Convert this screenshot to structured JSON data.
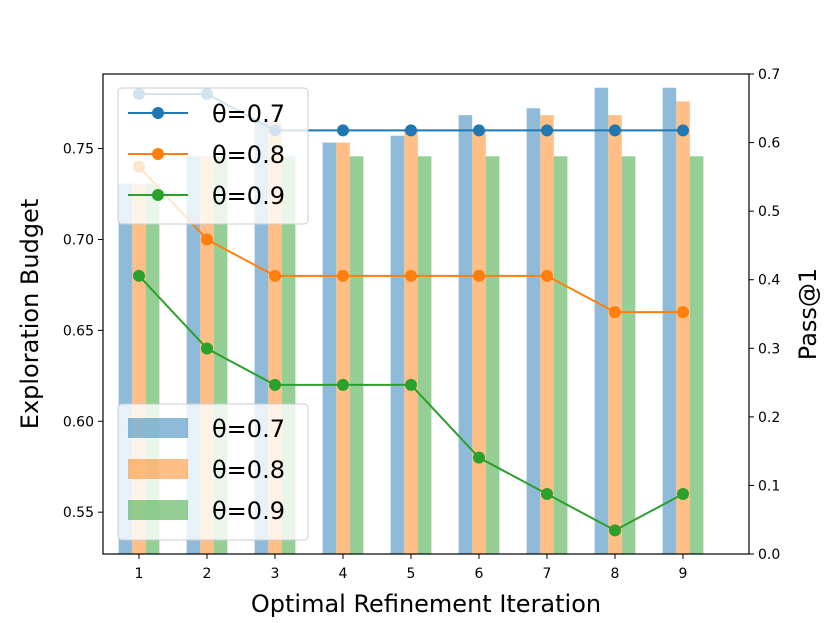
{
  "chart_data": {
    "type": "bar+line",
    "title": "",
    "xlabel": "Optimal Refinement Iteration",
    "ylabel_left": "Exploration Budget",
    "ylabel_right": "Pass@1",
    "categories": [
      "1",
      "2",
      "3",
      "4",
      "5",
      "6",
      "7",
      "8",
      "9"
    ],
    "ylim_left": [
      0.527,
      0.791
    ],
    "yticks_left": [
      "0.55",
      "0.60",
      "0.65",
      "0.70",
      "0.75"
    ],
    "ylim_right": [
      0.0,
      0.7
    ],
    "yticks_right": [
      "0.0",
      "0.1",
      "0.2",
      "0.3",
      "0.4",
      "0.5",
      "0.6",
      "0.7"
    ],
    "bar_series": [
      {
        "name": "θ=0.7",
        "color": "#1f77b4",
        "values": [
          0.54,
          0.58,
          0.63,
          0.6,
          0.61,
          0.64,
          0.65,
          0.68,
          0.68
        ]
      },
      {
        "name": "θ=0.8",
        "color": "#ff7f0e",
        "values": [
          0.54,
          0.58,
          0.63,
          0.6,
          0.62,
          0.62,
          0.64,
          0.64,
          0.66
        ]
      },
      {
        "name": "θ=0.9",
        "color": "#2ca02c",
        "values": [
          0.54,
          0.58,
          0.58,
          0.58,
          0.58,
          0.58,
          0.58,
          0.58,
          0.58
        ]
      }
    ],
    "line_series": [
      {
        "name": "θ=0.7",
        "color": "#1f77b4",
        "values": [
          0.78,
          0.78,
          0.76,
          0.76,
          0.76,
          0.76,
          0.76,
          0.76,
          0.76
        ]
      },
      {
        "name": "θ=0.8",
        "color": "#ff7f0e",
        "values": [
          0.74,
          0.7,
          0.68,
          0.68,
          0.68,
          0.68,
          0.68,
          0.66,
          0.66
        ]
      },
      {
        "name": "θ=0.9",
        "color": "#2ca02c",
        "values": [
          0.68,
          0.64,
          0.62,
          0.62,
          0.62,
          0.58,
          0.56,
          0.54,
          0.56
        ]
      }
    ],
    "line_legend_position": "upper-left",
    "bar_legend_position": "lower-left",
    "grid": false
  }
}
